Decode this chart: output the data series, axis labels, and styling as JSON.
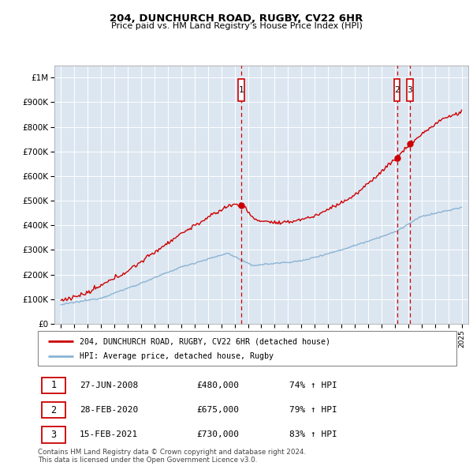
{
  "title1": "204, DUNCHURCH ROAD, RUGBY, CV22 6HR",
  "title2": "Price paid vs. HM Land Registry's House Price Index (HPI)",
  "ylabel_ticks": [
    "£0",
    "£100K",
    "£200K",
    "£300K",
    "£400K",
    "£500K",
    "£600K",
    "£700K",
    "£800K",
    "£900K",
    "£1M"
  ],
  "ytick_vals": [
    0,
    100000,
    200000,
    300000,
    400000,
    500000,
    600000,
    700000,
    800000,
    900000,
    1000000
  ],
  "ylim": [
    0,
    1050000
  ],
  "plot_bg": "#dce6f1",
  "red_line_color": "#cc0000",
  "blue_line_color": "#8ab4d4",
  "vline_color": "#cc0000",
  "sale1_x": 2008.49,
  "sale1_price": 480000,
  "sale2_x": 2020.16,
  "sale2_price": 675000,
  "sale3_x": 2021.12,
  "sale3_price": 730000,
  "legend_red": "204, DUNCHURCH ROAD, RUGBY, CV22 6HR (detached house)",
  "legend_blue": "HPI: Average price, detached house, Rugby",
  "table": [
    {
      "num": "1",
      "date": "27-JUN-2008",
      "price": "£480,000",
      "hpi": "74% ↑ HPI"
    },
    {
      "num": "2",
      "date": "28-FEB-2020",
      "price": "£675,000",
      "hpi": "79% ↑ HPI"
    },
    {
      "num": "3",
      "date": "15-FEB-2021",
      "price": "£730,000",
      "hpi": "83% ↑ HPI"
    }
  ],
  "footer": "Contains HM Land Registry data © Crown copyright and database right 2024.\nThis data is licensed under the Open Government Licence v3.0.",
  "xlim_min": 1994.5,
  "xlim_max": 2025.5,
  "fig_width": 6.0,
  "fig_height": 5.9,
  "dpi": 100
}
